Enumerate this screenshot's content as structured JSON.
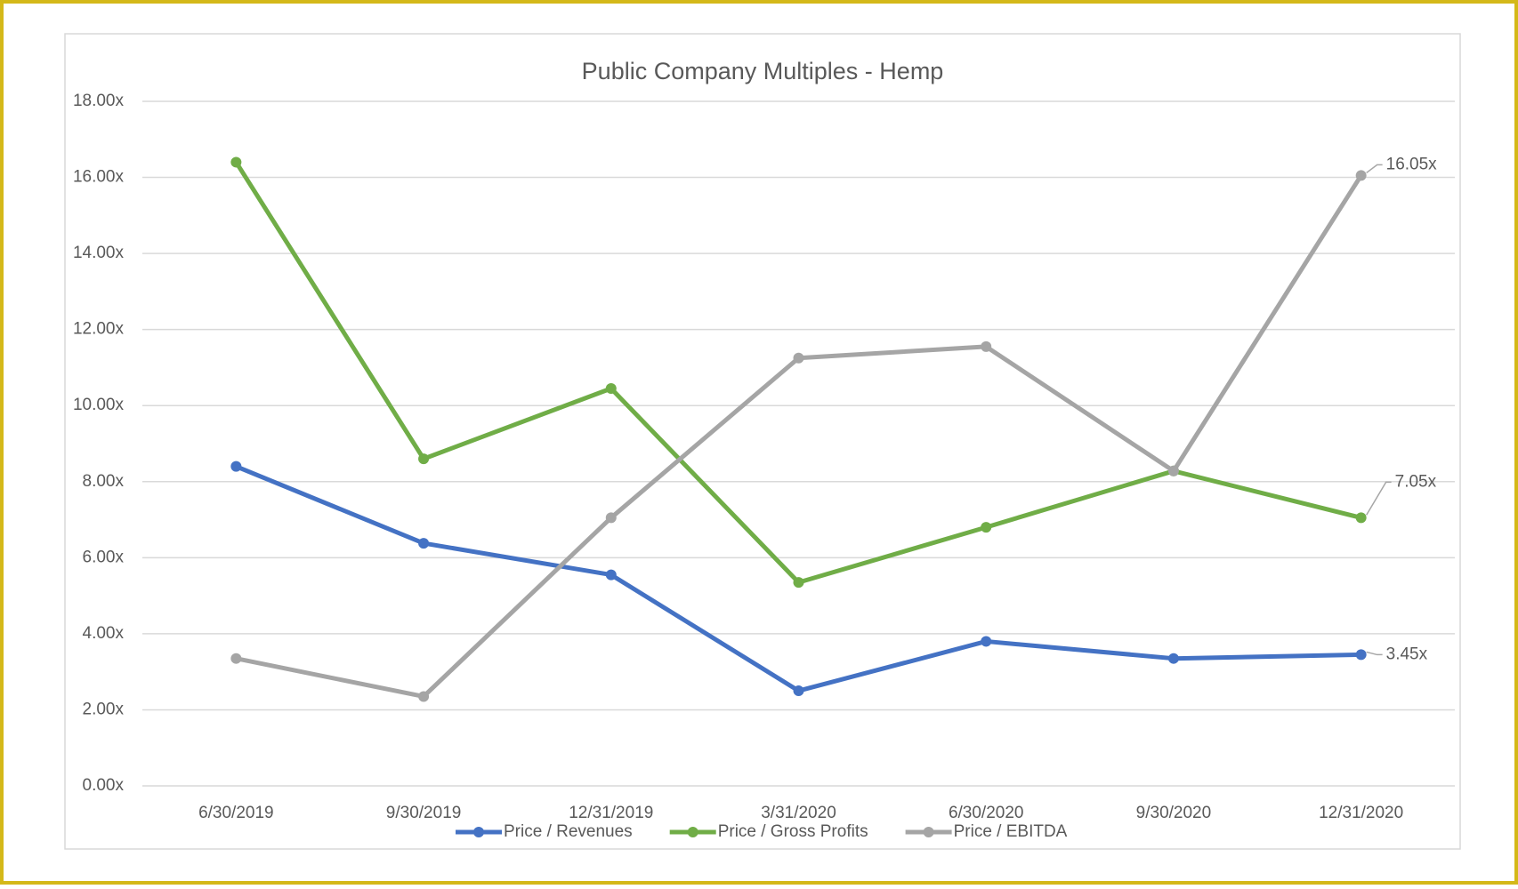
{
  "chart_data": {
    "type": "line",
    "title": "Public Company Multiples - Hemp",
    "categories": [
      "6/30/2019",
      "9/30/2019",
      "12/31/2019",
      "3/31/2020",
      "6/30/2020",
      "9/30/2020",
      "12/31/2020"
    ],
    "series": [
      {
        "name": "Price / Revenues",
        "color": "#4472c4",
        "values": [
          8.4,
          6.38,
          5.55,
          2.5,
          3.8,
          3.35,
          3.45
        ],
        "value_labels": [
          null,
          null,
          null,
          null,
          null,
          null,
          "3.45x"
        ]
      },
      {
        "name": "Price / Gross Profits",
        "color": "#70ad47",
        "values": [
          16.4,
          8.6,
          10.45,
          5.35,
          6.8,
          8.28,
          7.05
        ],
        "value_labels": [
          null,
          null,
          null,
          null,
          null,
          null,
          "7.05x"
        ]
      },
      {
        "name": "Price / EBITDA",
        "color": "#a5a5a5",
        "values": [
          3.35,
          2.35,
          7.05,
          11.25,
          11.55,
          8.28,
          16.05
        ],
        "value_labels": [
          null,
          null,
          null,
          null,
          null,
          null,
          "16.05x"
        ]
      }
    ],
    "ylim": [
      0,
      18
    ],
    "yticks": [
      {
        "value": 0,
        "label": "0.00x"
      },
      {
        "value": 2,
        "label": "2.00x"
      },
      {
        "value": 4,
        "label": "4.00x"
      },
      {
        "value": 6,
        "label": "6.00x"
      },
      {
        "value": 8,
        "label": "8.00x"
      },
      {
        "value": 10,
        "label": "10.00x"
      },
      {
        "value": 12,
        "label": "12.00x"
      },
      {
        "value": 14,
        "label": "14.00x"
      },
      {
        "value": 16,
        "label": "16.00x"
      },
      {
        "value": 18,
        "label": "18.00x"
      }
    ],
    "grid": true,
    "legend": "bottom"
  }
}
